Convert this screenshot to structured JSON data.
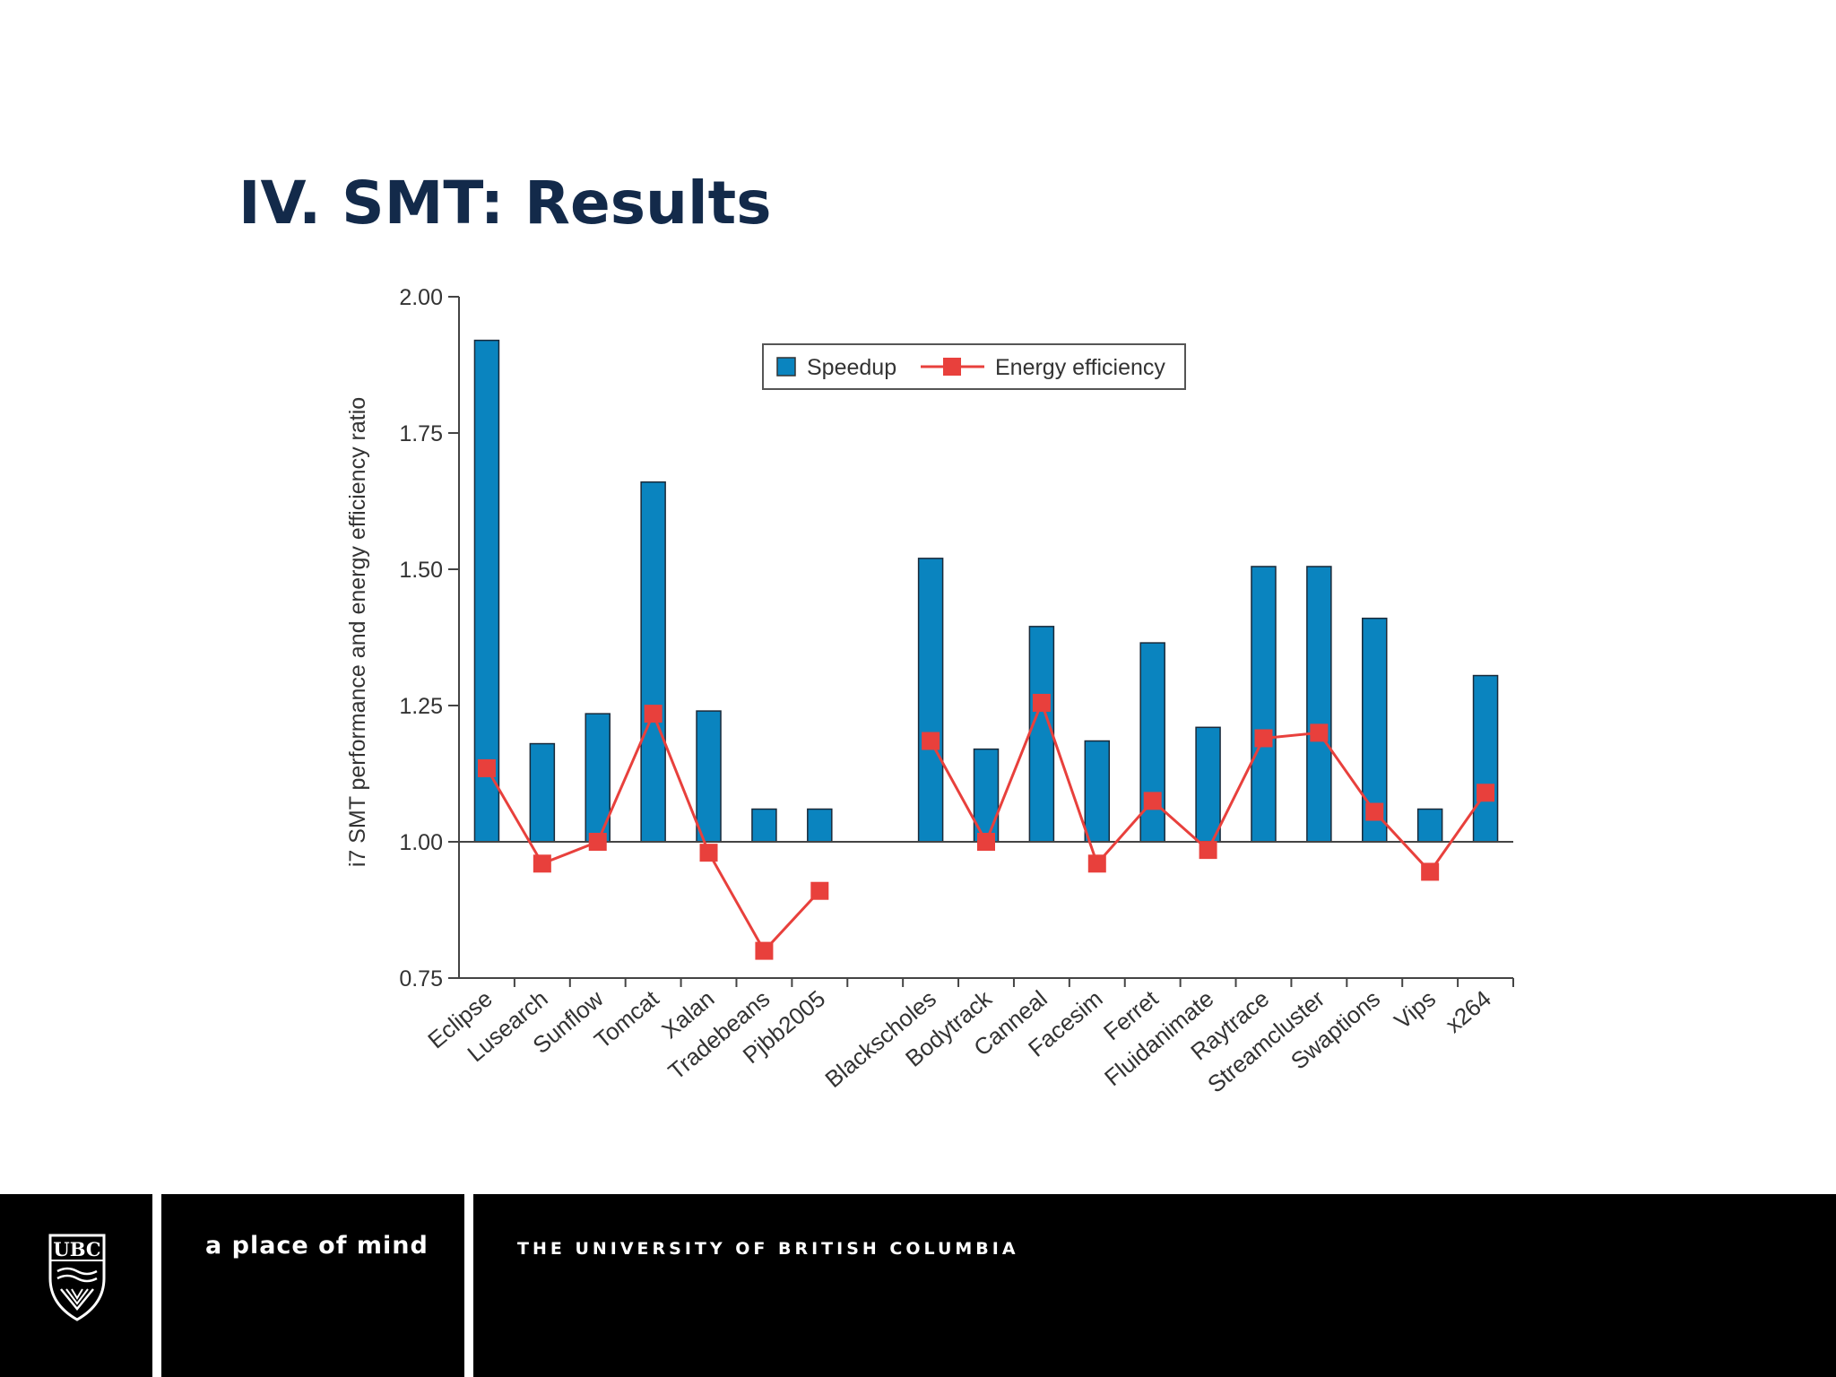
{
  "slide": {
    "title": "IV. SMT: Results"
  },
  "footer": {
    "logo_text": "UBC",
    "tagline": "a place of mind",
    "university": "THE UNIVERSITY OF BRITISH COLUMBIA"
  },
  "colors": {
    "speedup": "#0a84bf",
    "energy": "#e8403c",
    "title": "#132a4a"
  },
  "chart_data": {
    "type": "bar",
    "ylabel": "i7 SMT performance and energy efficiency ratio",
    "ylim": [
      0.75,
      2.0
    ],
    "yticks": [
      "0.75",
      "1.00",
      "1.25",
      "1.50",
      "1.75",
      "2.00"
    ],
    "baseline": 1.0,
    "legend_position": "top-center",
    "groups": [
      [
        "Eclipse",
        "Lusearch",
        "Sunflow",
        "Tomcat",
        "Xalan",
        "Tradebeans",
        "Pjbb2005"
      ],
      [
        "Blackscholes",
        "Bodytrack",
        "Canneal",
        "Facesim",
        "Ferret",
        "Fluidanimate",
        "Raytrace",
        "Streamcluster",
        "Swaptions",
        "Vips",
        "x264"
      ]
    ],
    "categories": [
      "Eclipse",
      "Lusearch",
      "Sunflow",
      "Tomcat",
      "Xalan",
      "Tradebeans",
      "Pjbb2005",
      "Blackscholes",
      "Bodytrack",
      "Canneal",
      "Facesim",
      "Ferret",
      "Fluidanimate",
      "Raytrace",
      "Streamcluster",
      "Swaptions",
      "Vips",
      "x264"
    ],
    "series": [
      {
        "name": "Speedup",
        "type": "bar",
        "values": [
          1.92,
          1.18,
          1.235,
          1.66,
          1.24,
          1.06,
          1.06,
          1.52,
          1.17,
          1.395,
          1.185,
          1.365,
          1.21,
          1.505,
          1.505,
          1.41,
          1.06,
          1.305
        ]
      },
      {
        "name": "Energy efficiency",
        "type": "line",
        "values": [
          1.135,
          0.96,
          1.0,
          1.235,
          0.98,
          0.8,
          0.91,
          1.185,
          1.0,
          1.255,
          0.96,
          1.075,
          0.985,
          1.19,
          1.2,
          1.055,
          0.945,
          1.09
        ]
      }
    ]
  }
}
